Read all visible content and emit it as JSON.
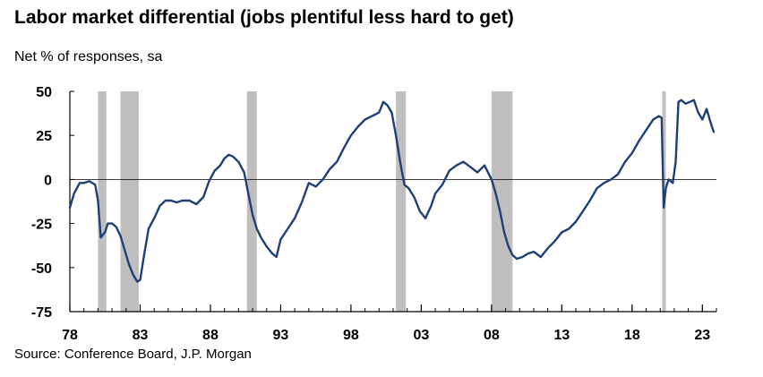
{
  "header": {
    "title": "Labor market differential (jobs plentiful less hard to get)",
    "subtitle": "Net % of responses, sa"
  },
  "footer": {
    "source": "Source: Conference Board, J.P. Morgan"
  },
  "colors": {
    "line": "#1f3f77",
    "recession": "#bfbfbf",
    "axis": "#000000"
  },
  "chart_data": {
    "type": "line",
    "title": "Labor market differential (jobs plentiful less hard to get)",
    "ylabel": "Net % of responses, sa",
    "xlabel": "",
    "ylim": [
      -75,
      50
    ],
    "xlim": [
      1978.0,
      2024.0
    ],
    "yticks": [
      50,
      25,
      0,
      -25,
      -50,
      -75
    ],
    "ytick_labels": [
      "50",
      "25",
      "0",
      "-25",
      "-50",
      "-75"
    ],
    "xticks": [
      1978,
      1983,
      1988,
      1993,
      1998,
      2003,
      2008,
      2013,
      2018,
      2023
    ],
    "xtick_labels": [
      "78",
      "83",
      "88",
      "93",
      "98",
      "03",
      "08",
      "13",
      "18",
      "23"
    ],
    "recessions": [
      [
        1980.0,
        1980.6
      ],
      [
        1981.6,
        1982.9
      ],
      [
        1990.6,
        1991.3
      ],
      [
        2001.2,
        2001.9
      ],
      [
        2008.0,
        2009.5
      ],
      [
        2020.15,
        2020.4
      ]
    ],
    "series": [
      {
        "x": [
          1978.0,
          1978.3,
          1978.7,
          1979.0,
          1979.4,
          1979.8,
          1980.0,
          1980.2,
          1980.5,
          1980.7,
          1981.0,
          1981.3,
          1981.6,
          1981.9,
          1982.2,
          1982.5,
          1982.8,
          1983.0,
          1983.3,
          1983.6,
          1984.0,
          1984.4,
          1984.8,
          1985.2,
          1985.6,
          1986.0,
          1986.5,
          1987.0,
          1987.5,
          1987.9,
          1988.3,
          1988.7,
          1989.0,
          1989.3,
          1989.6,
          1990.0,
          1990.4,
          1990.7,
          1991.0,
          1991.3,
          1991.6,
          1992.0,
          1992.4,
          1992.7,
          1993.0,
          1993.5,
          1994.0,
          1994.5,
          1995.0,
          1995.5,
          1996.0,
          1996.5,
          1997.0,
          1997.5,
          1998.0,
          1998.5,
          1999.0,
          1999.5,
          2000.0,
          2000.3,
          2000.6,
          2000.9,
          2001.2,
          2001.5,
          2001.8,
          2002.1,
          2002.5,
          2002.9,
          2003.3,
          2003.7,
          2004.0,
          2004.5,
          2005.0,
          2005.5,
          2006.0,
          2006.5,
          2007.0,
          2007.5,
          2008.0,
          2008.3,
          2008.6,
          2008.9,
          2009.2,
          2009.5,
          2009.8,
          2010.2,
          2010.6,
          2011.0,
          2011.5,
          2012.0,
          2012.5,
          2013.0,
          2013.5,
          2014.0,
          2014.5,
          2015.0,
          2015.5,
          2016.0,
          2016.5,
          2017.0,
          2017.5,
          2018.0,
          2018.5,
          2019.0,
          2019.5,
          2019.9,
          2020.1,
          2020.25,
          2020.4,
          2020.6,
          2020.9,
          2021.1,
          2021.3,
          2021.5,
          2021.8,
          2022.1,
          2022.4,
          2022.7,
          2023.0,
          2023.3,
          2023.6,
          2023.8
        ],
        "y": [
          -16,
          -8,
          -2,
          -2,
          -1,
          -3,
          -12,
          -33,
          -30,
          -25,
          -25,
          -27,
          -32,
          -40,
          -48,
          -54,
          -58,
          -57,
          -42,
          -28,
          -22,
          -15,
          -12,
          -12,
          -13,
          -12,
          -12,
          -14,
          -10,
          -1,
          5,
          8,
          12,
          14,
          13,
          10,
          4,
          -8,
          -20,
          -28,
          -33,
          -38,
          -42,
          -44,
          -34,
          -28,
          -22,
          -13,
          -2,
          -4,
          0,
          6,
          10,
          18,
          25,
          30,
          34,
          36,
          38,
          44,
          42,
          38,
          25,
          10,
          -3,
          -5,
          -10,
          -18,
          -22,
          -15,
          -8,
          -3,
          5,
          8,
          10,
          7,
          4,
          8,
          0,
          -8,
          -18,
          -30,
          -38,
          -43,
          -45,
          -44,
          -42,
          -41,
          -44,
          -39,
          -35,
          -30,
          -28,
          -24,
          -18,
          -12,
          -5,
          -2,
          0,
          3,
          10,
          15,
          22,
          28,
          34,
          36,
          35,
          -16,
          -5,
          0,
          -2,
          10,
          44,
          45,
          43,
          44,
          45,
          38,
          34,
          40,
          32,
          27
        ]
      }
    ]
  }
}
